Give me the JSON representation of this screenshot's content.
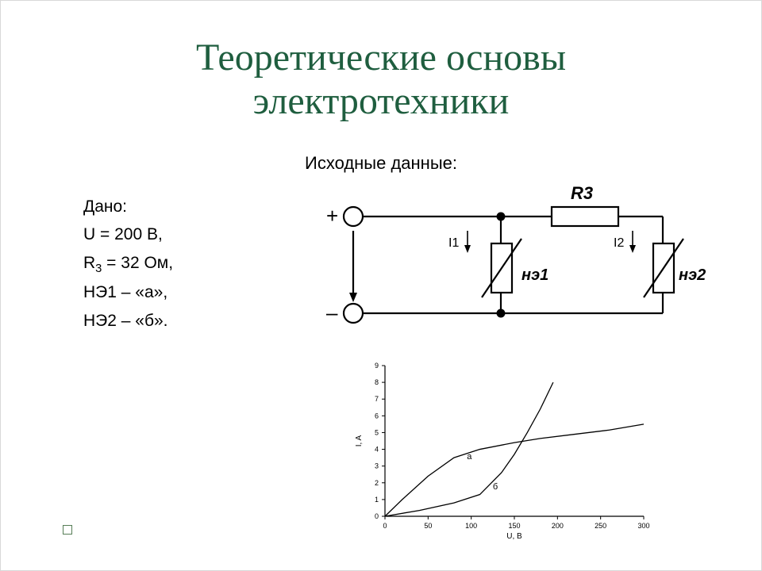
{
  "title_line1": "Теоретические основы",
  "title_line2": "электротехники",
  "title_color": "#1f5e3f",
  "subtitle": "Исходные данные:",
  "given": {
    "heading": "Дано:",
    "lines": [
      "U = 200 В,",
      "R₃ = 32 Ом,",
      "НЭ1 – «а»,",
      "НЭ2 – «б»."
    ]
  },
  "circuit": {
    "labels": {
      "plus": "+",
      "minus": "–",
      "r3": "R3",
      "i1": "I1",
      "i2": "I2",
      "ne1": "нэ1",
      "ne2": "нэ2"
    },
    "stroke": "#000000",
    "line_width": 2,
    "label_fontsize": 20,
    "label_fontsize_italic": 22
  },
  "chart": {
    "type": "line",
    "xlabel": "U, B",
    "ylabel": "I, A",
    "xlim": [
      0,
      300
    ],
    "ylim": [
      0,
      9
    ],
    "xticks": [
      0,
      50,
      100,
      150,
      200,
      250,
      300
    ],
    "yticks": [
      0,
      1,
      2,
      3,
      4,
      5,
      6,
      7,
      8,
      9
    ],
    "series": [
      {
        "name": "а",
        "label_pos": [
          95,
          3.4
        ],
        "color": "#000000",
        "line_width": 1.3,
        "points": [
          [
            0,
            0
          ],
          [
            20,
            1.0
          ],
          [
            50,
            2.4
          ],
          [
            80,
            3.5
          ],
          [
            110,
            4.0
          ],
          [
            150,
            4.4
          ],
          [
            180,
            4.65
          ],
          [
            220,
            4.9
          ],
          [
            260,
            5.15
          ],
          [
            300,
            5.5
          ]
        ]
      },
      {
        "name": "б",
        "label_pos": [
          125,
          1.6
        ],
        "color": "#000000",
        "line_width": 1.3,
        "points": [
          [
            0,
            0
          ],
          [
            40,
            0.35
          ],
          [
            80,
            0.8
          ],
          [
            110,
            1.3
          ],
          [
            135,
            2.6
          ],
          [
            150,
            3.7
          ],
          [
            165,
            5.0
          ],
          [
            180,
            6.4
          ],
          [
            195,
            8.0
          ]
        ]
      }
    ],
    "axis_color": "#000000",
    "tick_fontsize": 9,
    "label_fontsize": 10,
    "curve_label_fontsize": 11,
    "background": "#ffffff"
  }
}
